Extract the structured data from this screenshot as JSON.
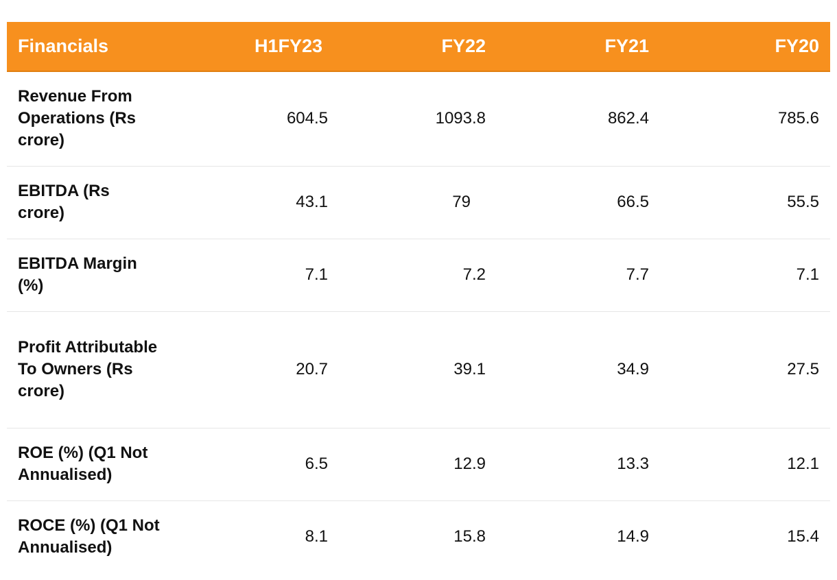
{
  "table": {
    "headers": [
      "Financials",
      "H1FY23",
      "FY22",
      "FY21",
      "FY20"
    ],
    "rows": [
      {
        "label": "Revenue From Operations (Rs crore)",
        "values": [
          "604.5",
          "1093.8",
          "862.4",
          "785.6"
        ]
      },
      {
        "label": "EBITDA (Rs crore)",
        "values": [
          "43.1",
          "79",
          "66.5",
          "55.5"
        ]
      },
      {
        "label": "EBITDA Margin (%)",
        "values": [
          "7.1",
          "7.2",
          "7.7",
          "7.1"
        ]
      },
      {
        "label": "Profit Attributable To Owners (Rs crore)",
        "values": [
          "20.7",
          "39.1",
          "34.9",
          "27.5"
        ]
      },
      {
        "label": "ROE (%) (Q1 Not Annualised)",
        "values": [
          "6.5",
          "12.9",
          "13.3",
          "12.1"
        ]
      },
      {
        "label": "ROCE (%) (Q1 Not Annualised)",
        "values": [
          "8.1",
          "15.8",
          "14.9",
          "15.4"
        ]
      }
    ]
  },
  "colors": {
    "header_bg": "#f7901e",
    "header_text": "#ffffff",
    "row_divider": "#e6e6e6"
  }
}
